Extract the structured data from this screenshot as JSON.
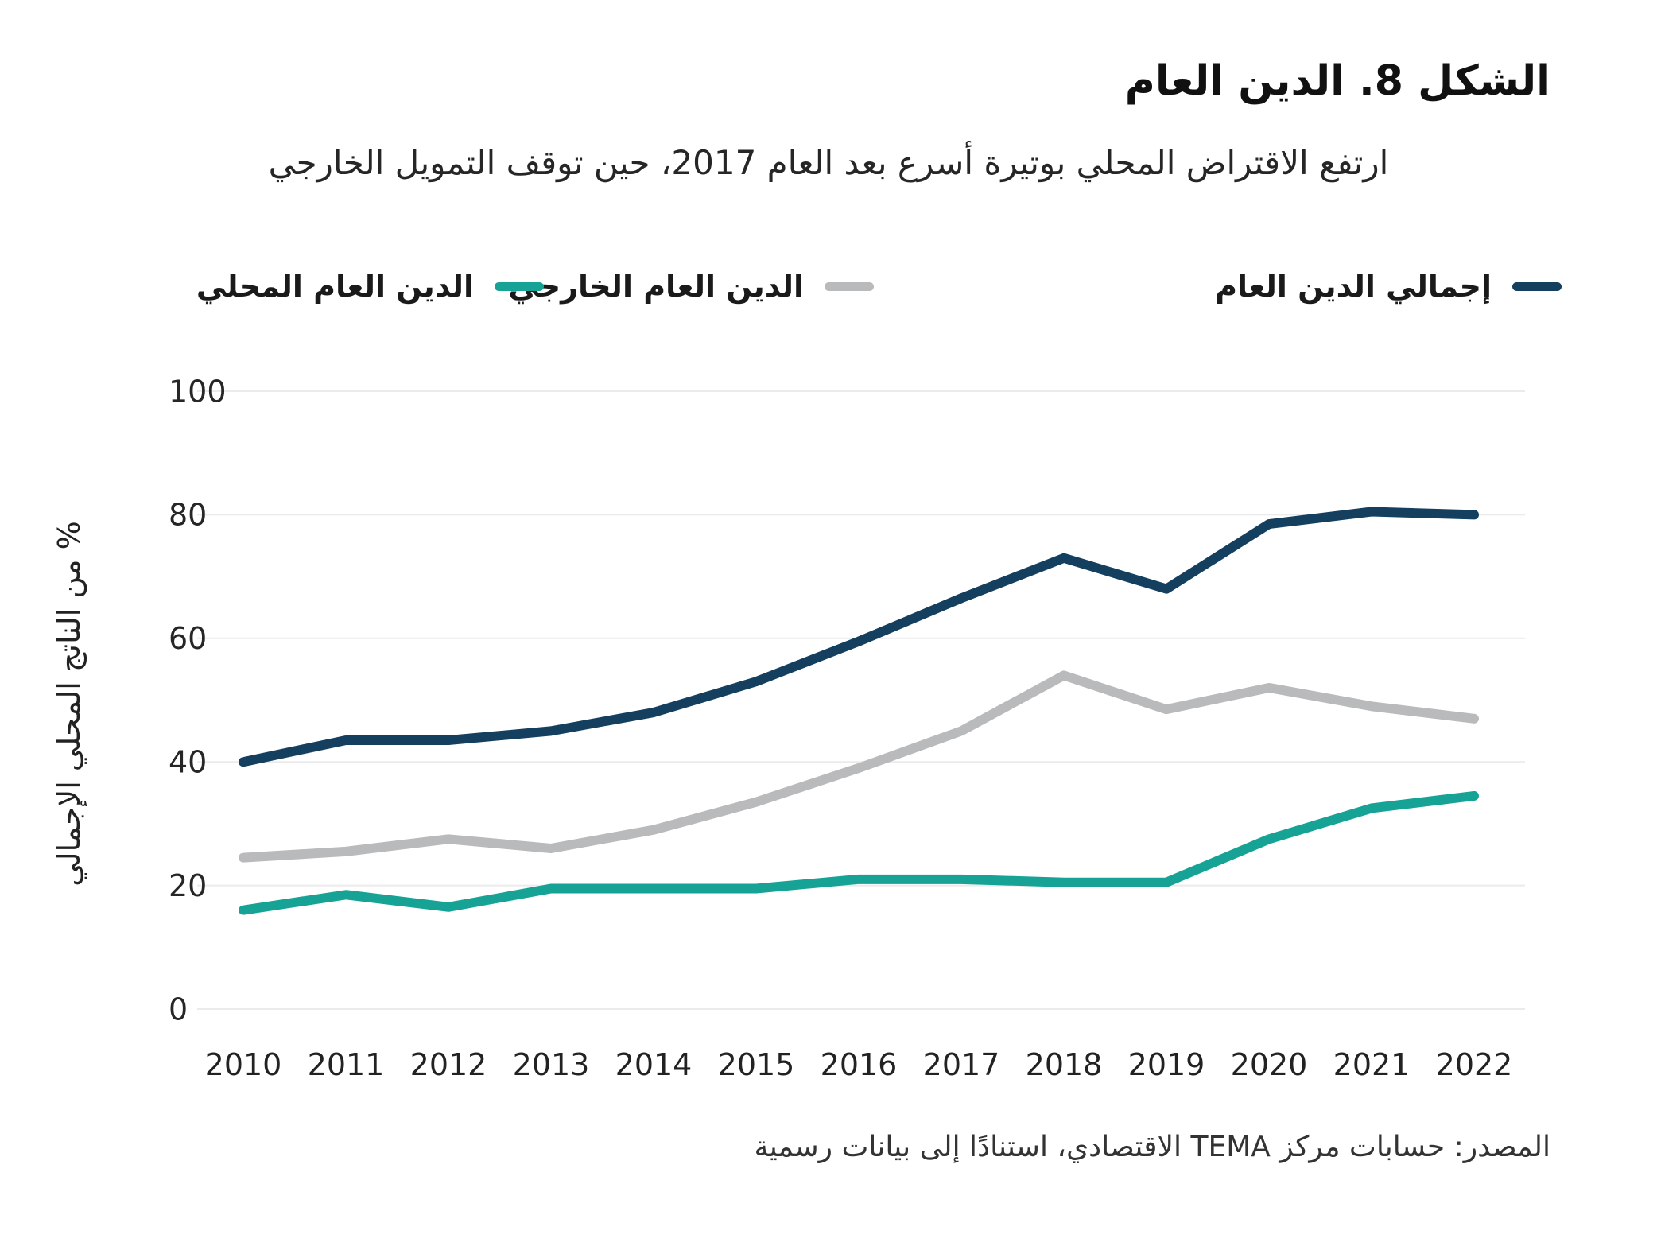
{
  "figure": {
    "title": "الشكل 8. الدين العام",
    "subtitle": "ارتفع الاقتراض المحلي بوتيرة أسرع بعد العام 2017، حين توقف التمويل الخارجي",
    "source": "المصدر: حسابات مركز TEMA الاقتصادي، استنادًا إلى بيانات رسمية"
  },
  "legend": [
    {
      "label": "إجمالي الدين العام",
      "color": "#143f5f"
    },
    {
      "label": "الدين العام الخارجي",
      "color": "#b9babb"
    },
    {
      "label": "الدين العام المحلي",
      "color": "#16a396"
    }
  ],
  "colors": {
    "total": "#143f5f",
    "external": "#b9babb",
    "domestic": "#16a396",
    "gridline": "#ebebeb",
    "tick_text": "#262626"
  },
  "chart_data": {
    "type": "line",
    "x": [
      2010,
      2011,
      2012,
      2013,
      2014,
      2015,
      2016,
      2017,
      2018,
      2019,
      2020,
      2021,
      2022
    ],
    "series": [
      {
        "name": "إجمالي الدين العام",
        "color": "#143f5f",
        "values": [
          40,
          43.5,
          43.5,
          45,
          48,
          53,
          59.5,
          66.5,
          73,
          68,
          78.5,
          80.5,
          80
        ]
      },
      {
        "name": "الدين العام الخارجي",
        "color": "#b9babb",
        "values": [
          24.5,
          25.5,
          27.5,
          26,
          29,
          33.5,
          39,
          45,
          54,
          48.5,
          52,
          49,
          47
        ]
      },
      {
        "name": "الدين العام المحلي",
        "color": "#16a396",
        "values": [
          16,
          18.5,
          16.5,
          19.5,
          19.5,
          19.5,
          21,
          21,
          20.5,
          20.5,
          27.5,
          32.5,
          34.5
        ]
      }
    ],
    "title": "الشكل 8. الدين العام",
    "xlabel": "",
    "ylabel": "% من الناتج المحلي الإجمالي",
    "ylim": [
      0,
      100
    ],
    "yticks": [
      0,
      20,
      40,
      60,
      80,
      100
    ],
    "grid": true,
    "legend_position": "top"
  }
}
